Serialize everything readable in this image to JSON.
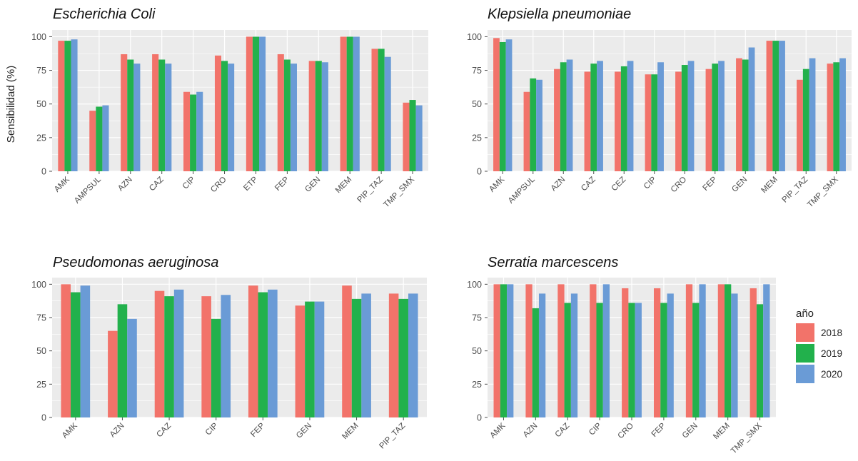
{
  "legend": {
    "title": "año",
    "placement": "right",
    "items": [
      "2018",
      "2019",
      "2020"
    ]
  },
  "colors": {
    "2018": "#f2736a",
    "2019": "#22b14c",
    "2020": "#6a9bd6",
    "panel_bg": "#ebebeb",
    "grid": "#ffffff"
  },
  "chart_data": [
    {
      "type": "bar",
      "title": "Escherichia Coli",
      "ylabel": "Sensibilidad (%)",
      "ylim": [
        0,
        105
      ],
      "yticks": [
        0,
        25,
        50,
        75,
        100
      ],
      "grid": true,
      "categories": [
        "AMK",
        "AMPSUL",
        "AZN",
        "CAZ",
        "CIP",
        "CRO",
        "ETP",
        "FEP",
        "GEN",
        "MEM",
        "PIP_TAZ",
        "TMP_SMX"
      ],
      "series": [
        {
          "name": "2018",
          "values": [
            97,
            45,
            87,
            87,
            59,
            86,
            100,
            87,
            82,
            100,
            91,
            51
          ]
        },
        {
          "name": "2019",
          "values": [
            97,
            48,
            83,
            83,
            57,
            82,
            100,
            83,
            82,
            100,
            91,
            53
          ]
        },
        {
          "name": "2020",
          "values": [
            98,
            49,
            80,
            80,
            59,
            80,
            100,
            80,
            81,
            100,
            85,
            49
          ]
        }
      ]
    },
    {
      "type": "bar",
      "title": "Klepsiella pneumoniae",
      "ylabel": "",
      "ylim": [
        0,
        105
      ],
      "yticks": [
        0,
        25,
        50,
        75,
        100
      ],
      "grid": true,
      "categories": [
        "AMK",
        "AMPSUL",
        "AZN",
        "CAZ",
        "CEZ",
        "CIP",
        "CRO",
        "FEP",
        "GEN",
        "MEM",
        "PIP_TAZ",
        "TMP_SMX"
      ],
      "series": [
        {
          "name": "2018",
          "values": [
            99,
            59,
            76,
            74,
            74,
            72,
            74,
            76,
            84,
            97,
            68,
            80
          ]
        },
        {
          "name": "2019",
          "values": [
            96,
            69,
            81,
            80,
            78,
            72,
            79,
            80,
            83,
            97,
            76,
            81
          ]
        },
        {
          "name": "2020",
          "values": [
            98,
            68,
            83,
            82,
            82,
            81,
            82,
            82,
            92,
            97,
            84,
            84
          ]
        }
      ]
    },
    {
      "type": "bar",
      "title": "Pseudomonas aeruginosa",
      "ylabel": "",
      "ylim": [
        0,
        105
      ],
      "yticks": [
        0,
        25,
        50,
        75,
        100
      ],
      "grid": true,
      "categories": [
        "AMK",
        "AZN",
        "CAZ",
        "CIP",
        "FEP",
        "GEN",
        "MEM",
        "PIP_TAZ"
      ],
      "series": [
        {
          "name": "2018",
          "values": [
            100,
            65,
            95,
            91,
            99,
            84,
            99,
            93
          ]
        },
        {
          "name": "2019",
          "values": [
            94,
            85,
            91,
            74,
            94,
            87,
            89,
            89
          ]
        },
        {
          "name": "2020",
          "values": [
            99,
            74,
            96,
            92,
            96,
            87,
            93,
            93
          ]
        }
      ]
    },
    {
      "type": "bar",
      "title": "Serratia marcescens",
      "ylabel": "",
      "ylim": [
        0,
        105
      ],
      "yticks": [
        0,
        25,
        50,
        75,
        100
      ],
      "grid": true,
      "categories": [
        "AMK",
        "AZN",
        "CAZ",
        "CIP",
        "CRO",
        "FEP",
        "GEN",
        "MEM",
        "TMP_SMX"
      ],
      "series": [
        {
          "name": "2018",
          "values": [
            100,
            100,
            100,
            100,
            97,
            97,
            100,
            100,
            97
          ]
        },
        {
          "name": "2019",
          "values": [
            100,
            82,
            86,
            86,
            86,
            86,
            86,
            100,
            85
          ]
        },
        {
          "name": "2020",
          "values": [
            100,
            93,
            93,
            100,
            86,
            93,
            100,
            93,
            100
          ]
        }
      ]
    }
  ]
}
